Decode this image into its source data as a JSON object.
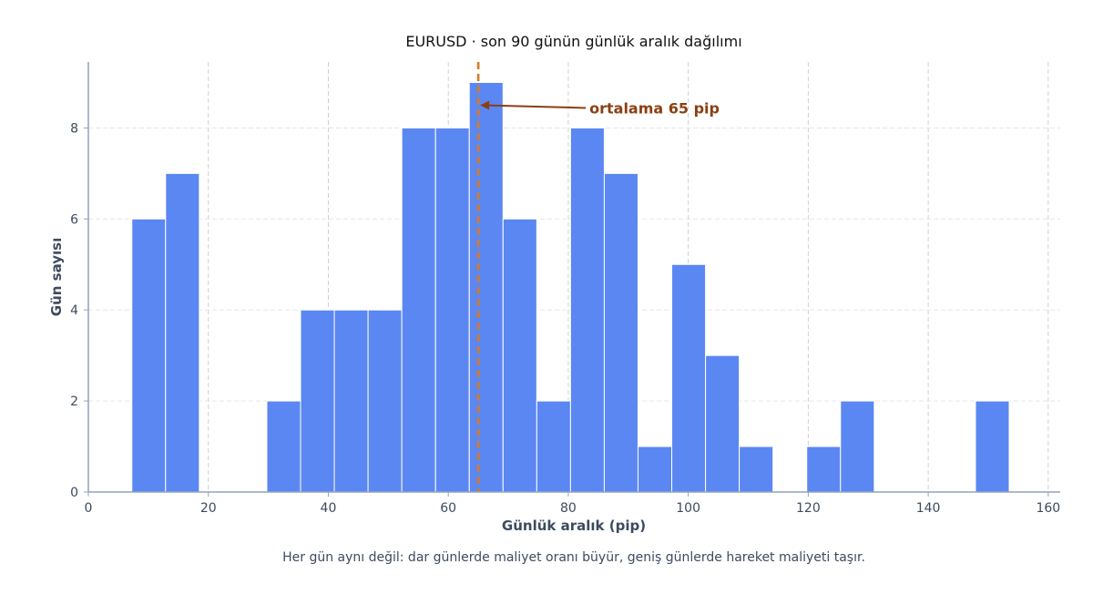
{
  "chart_data": {
    "type": "bar",
    "title": "EURUSD · son 90 günün günlük aralık dağılımı",
    "xlabel": "Günlük aralık (pip)",
    "ylabel": "Gün sayısı",
    "caption": "Her gün aynı değil: dar günlerde maliyet oranı büyür, geniş günlerde hareket maliyeti taşır.",
    "bin_start": 7.25,
    "bin_width": 5.625,
    "counts": [
      6,
      7,
      0,
      0,
      2,
      4,
      4,
      4,
      8,
      8,
      9,
      6,
      2,
      8,
      7,
      1,
      5,
      3,
      1,
      0,
      1,
      2,
      0,
      0,
      0,
      2
    ],
    "xlim": [
      0,
      162
    ],
    "ylim": [
      0,
      9.45
    ],
    "x_ticks": [
      0,
      20,
      40,
      60,
      80,
      100,
      120,
      140,
      160
    ],
    "y_ticks": [
      0,
      2,
      4,
      6,
      8
    ],
    "grid": true,
    "mean_line": {
      "value": 65
    },
    "annotation": {
      "text": "ortalama 65 pip",
      "x": 65,
      "y": 8.5
    },
    "colors": {
      "bar": "#5b87f2",
      "bar_edge": "#ffffff",
      "mean_line": "#d97a1e",
      "annotation": "#8b3f14",
      "axis": "#8fa4bd",
      "grid": "#cccccc"
    }
  }
}
